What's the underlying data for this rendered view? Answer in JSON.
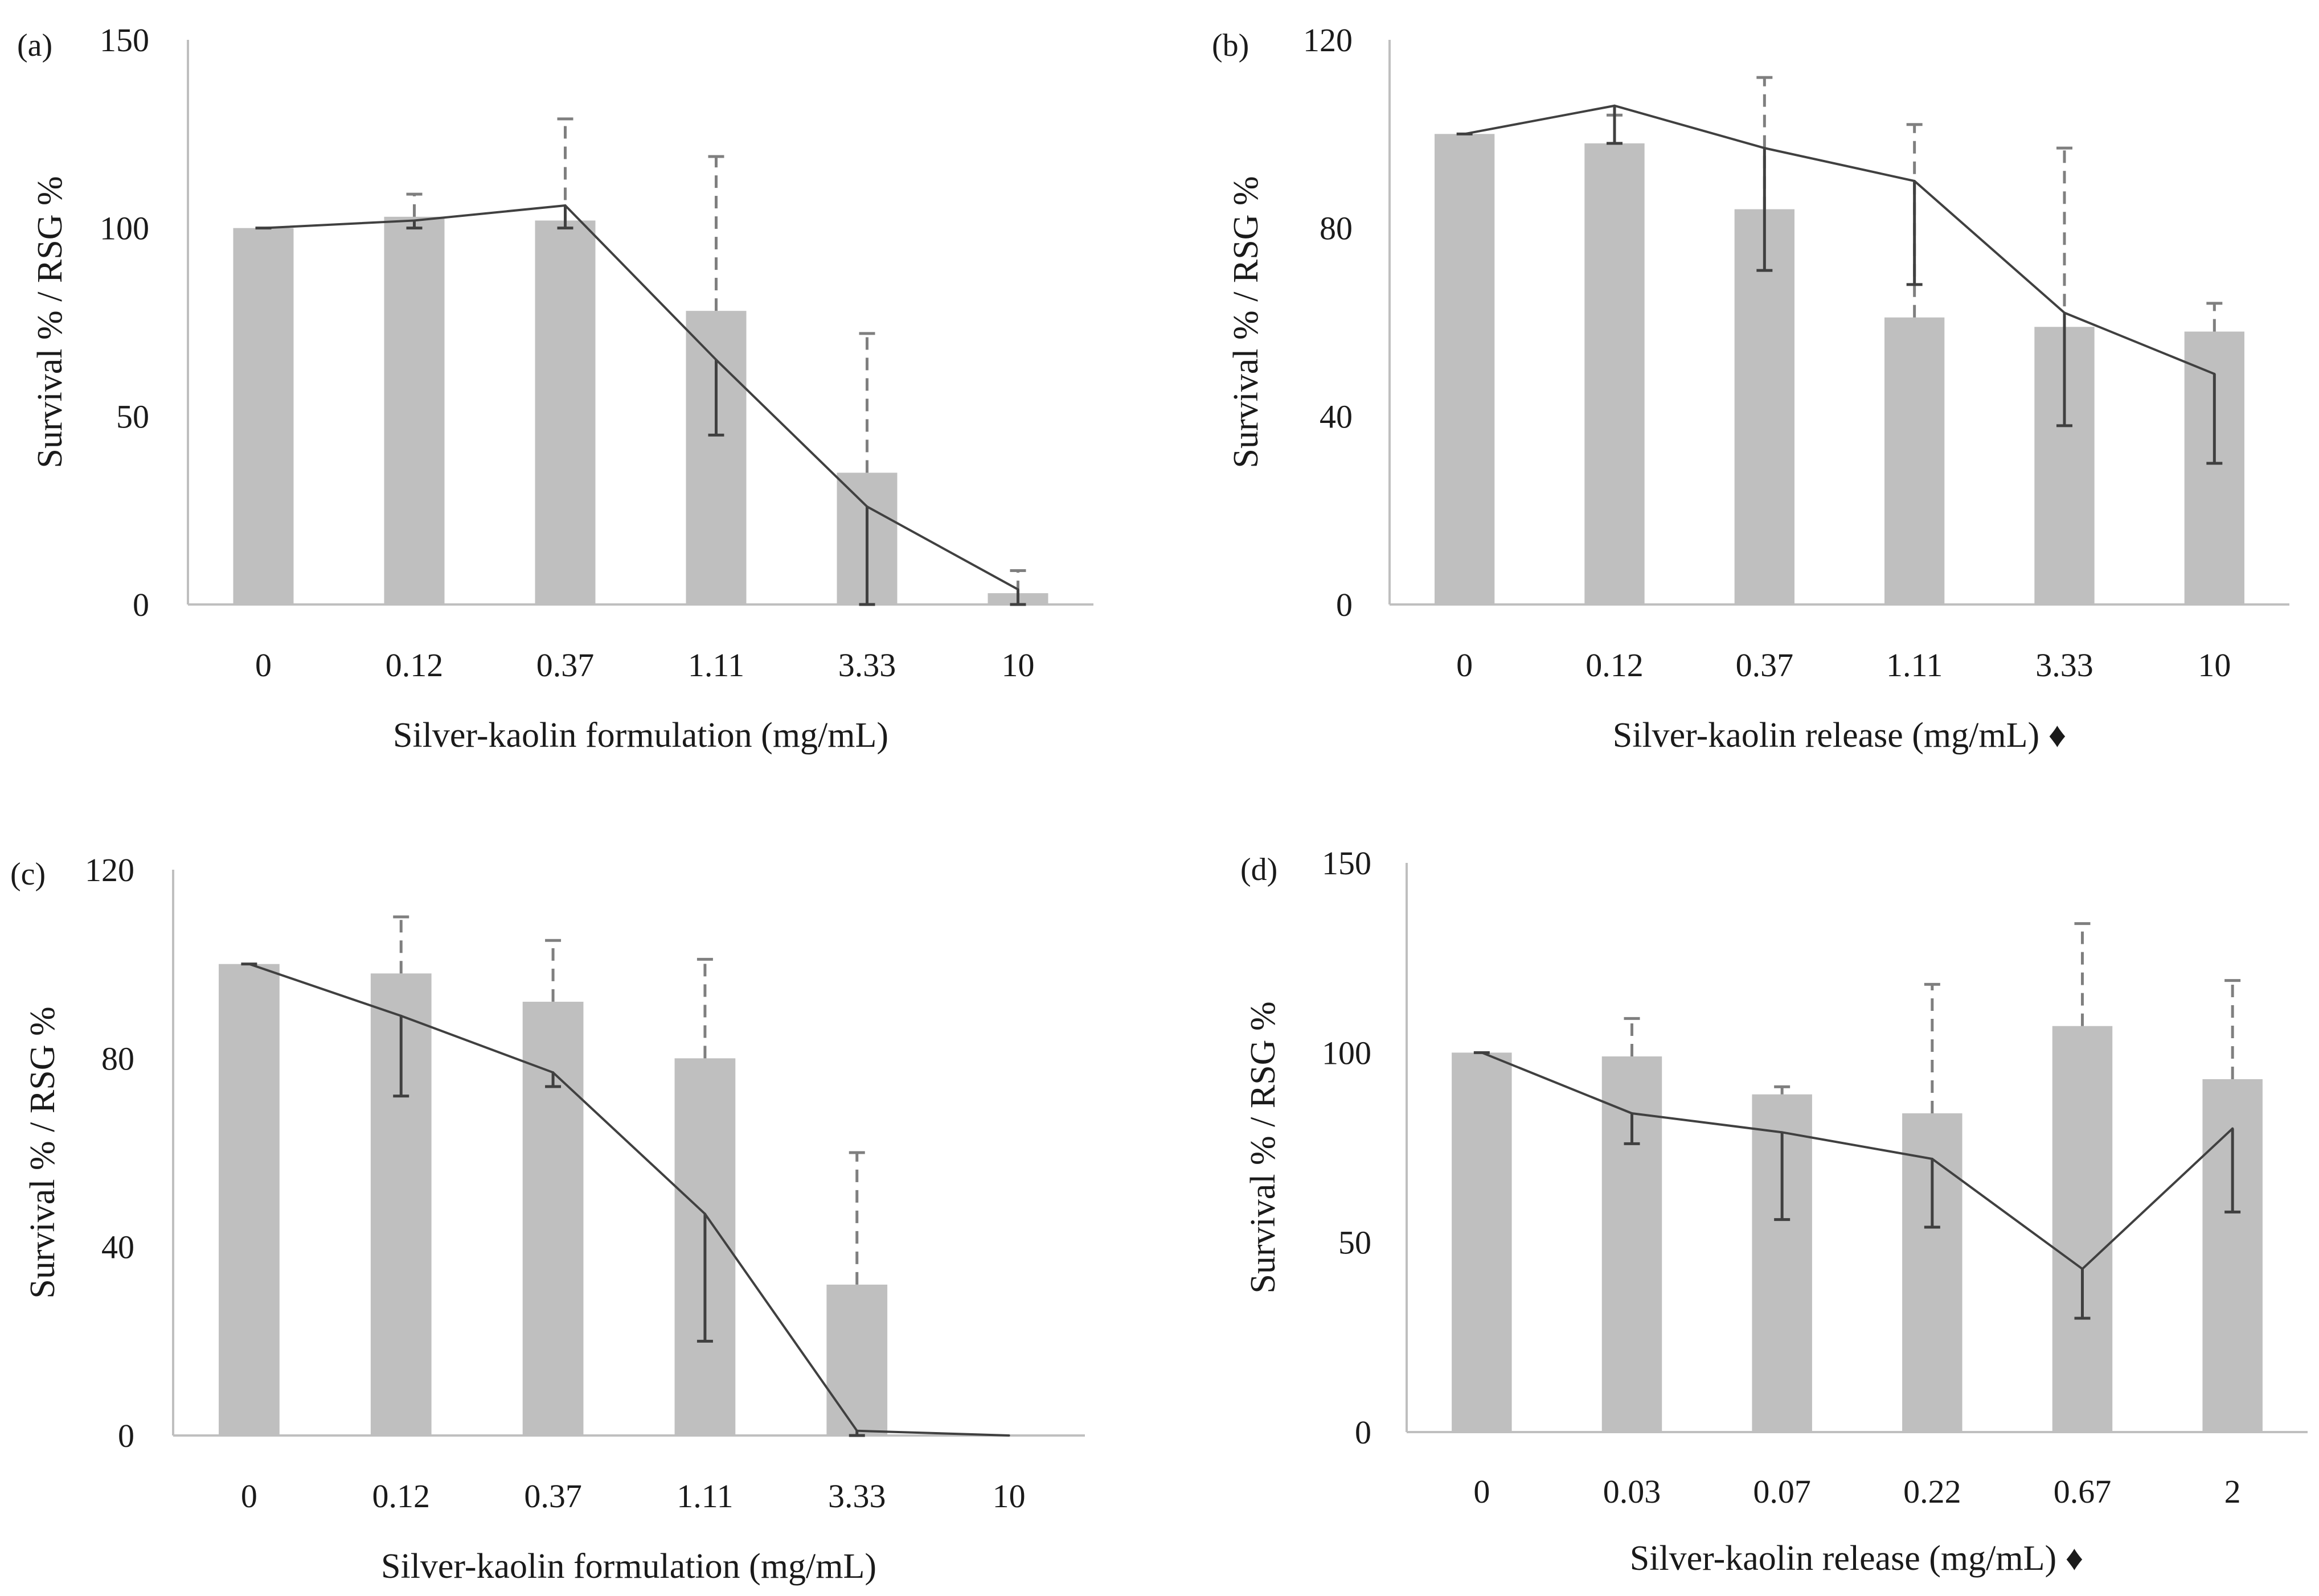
{
  "figure": {
    "description_free": true,
    "colors": {
      "bar": "#bfbfbf",
      "line": "#404040",
      "axis": "#bfbfbf",
      "err_survival": "#404040",
      "err_rsg": "#7f7f7f"
    }
  },
  "chart_data": [
    {
      "id": "a",
      "panel_label": "(a)",
      "type": "bar+line",
      "categories": [
        "0",
        "0.12",
        "0.37",
        "1.11",
        "3.33",
        "10"
      ],
      "xlabel": "Silver-kaolin formulation (mg/mL)",
      "ylabel": "Survival % / RSG %",
      "ylim": [
        0,
        150
      ],
      "yticks": [
        "0",
        "50",
        "100",
        "150"
      ],
      "series": [
        {
          "name": "RSG %",
          "kind": "bar",
          "values": [
            100,
            103,
            102,
            78,
            35,
            3
          ],
          "errors_up": [
            0,
            6,
            27,
            41,
            37,
            6
          ],
          "error_style": "dashed"
        },
        {
          "name": "Survival %",
          "kind": "line",
          "values": [
            100,
            102,
            106,
            65,
            26,
            4
          ],
          "errors_down": [
            0,
            2,
            6,
            20,
            26,
            4
          ],
          "error_style": "solid"
        }
      ]
    },
    {
      "id": "b",
      "panel_label": "(b)",
      "type": "bar+line",
      "categories": [
        "0",
        "0.12",
        "0.37",
        "1.11",
        "3.33",
        "10"
      ],
      "xlabel": "Silver-kaolin release (mg/mL) ♦",
      "ylabel": "Survival % / RSG %",
      "ylim": [
        0,
        120
      ],
      "yticks": [
        "0",
        "40",
        "80",
        "120"
      ],
      "series": [
        {
          "name": "RSG %",
          "kind": "bar",
          "values": [
            100,
            98,
            84,
            61,
            59,
            58
          ],
          "errors_up": [
            0,
            6,
            28,
            41,
            38,
            6
          ],
          "error_style": "dashed"
        },
        {
          "name": "Survival %",
          "kind": "line",
          "values": [
            100,
            106,
            97,
            90,
            62,
            49
          ],
          "errors_down": [
            0,
            8,
            26,
            22,
            24,
            19
          ],
          "error_style": "solid"
        }
      ]
    },
    {
      "id": "c",
      "panel_label": "(c)",
      "type": "bar+line",
      "categories": [
        "0",
        "0.12",
        "0.37",
        "1.11",
        "3.33",
        "10"
      ],
      "xlabel": "Silver-kaolin formulation (mg/mL)",
      "ylabel": "Survival % / RSG %",
      "ylim": [
        0,
        120
      ],
      "yticks": [
        "0",
        "40",
        "80",
        "120"
      ],
      "series": [
        {
          "name": "RSG %",
          "kind": "bar",
          "values": [
            100,
            98,
            92,
            80,
            32,
            0
          ],
          "errors_up": [
            0,
            12,
            13,
            21,
            28,
            0
          ],
          "error_style": "dashed"
        },
        {
          "name": "Survival %",
          "kind": "line",
          "values": [
            100,
            89,
            77,
            47,
            1,
            0
          ],
          "errors_down": [
            0,
            17,
            3,
            27,
            1,
            0
          ],
          "error_style": "solid"
        }
      ]
    },
    {
      "id": "d",
      "panel_label": "(d)",
      "type": "bar+line",
      "categories": [
        "0",
        "0.03",
        "0.07",
        "0.22",
        "0.67",
        "2"
      ],
      "xlabel": "Silver-kaolin release (mg/mL) ♦",
      "ylabel": "Survival % / RSG %",
      "ylim": [
        0,
        150
      ],
      "yticks": [
        "0",
        "50",
        "100",
        "150"
      ],
      "series": [
        {
          "name": "RSG %",
          "kind": "bar",
          "values": [
            100,
            99,
            89,
            84,
            107,
            93
          ],
          "errors_up": [
            0,
            10,
            2,
            34,
            27,
            26
          ],
          "error_style": "dashed"
        },
        {
          "name": "Survival %",
          "kind": "line",
          "values": [
            100,
            84,
            79,
            72,
            43,
            80
          ],
          "errors_down": [
            0,
            8,
            23,
            18,
            13,
            22
          ],
          "error_style": "solid"
        }
      ]
    }
  ]
}
